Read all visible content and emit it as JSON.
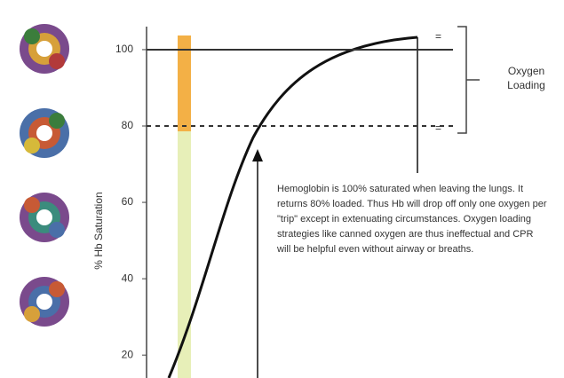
{
  "chart_data": {
    "type": "curve",
    "y_label": "% Hb Saturation",
    "ylim": [
      14,
      113
    ],
    "yticks": [
      20,
      40,
      60,
      80,
      100
    ],
    "reference_lines": [
      100,
      80
    ],
    "annotation": "Hemoglobin is 100% saturated when leaving the lungs. It returns 80% loaded. Thus Hb will drop off only one oxygen per \"trip\" except in extenuating circumstances. Oxygen loading strategies like canned oxygen are thus ineffectual and CPR will be helpful even without airway or breaths.",
    "side_label": "Oxygen Loading"
  }
}
